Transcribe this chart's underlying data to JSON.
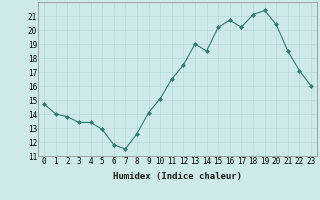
{
  "x": [
    0,
    1,
    2,
    3,
    4,
    5,
    6,
    7,
    8,
    9,
    10,
    11,
    12,
    13,
    14,
    15,
    16,
    17,
    18,
    19,
    20,
    21,
    22,
    23
  ],
  "y": [
    14.7,
    14.0,
    13.8,
    13.4,
    13.4,
    12.9,
    11.8,
    11.5,
    12.6,
    14.1,
    15.1,
    16.5,
    17.5,
    19.0,
    18.5,
    20.2,
    20.7,
    20.2,
    21.1,
    21.4,
    20.4,
    18.5,
    17.1,
    16.0
  ],
  "line_color": "#2d7d6e",
  "marker": "D",
  "marker_size": 2.0,
  "bg_color": "#ceeae8",
  "grid_color": "#b8d8d6",
  "xlabel": "Humidex (Indice chaleur)",
  "xlim": [
    -0.5,
    23.5
  ],
  "ylim": [
    11,
    22
  ],
  "yticks": [
    11,
    12,
    13,
    14,
    15,
    16,
    17,
    18,
    19,
    20,
    21
  ],
  "xticks": [
    0,
    1,
    2,
    3,
    4,
    5,
    6,
    7,
    8,
    9,
    10,
    11,
    12,
    13,
    14,
    15,
    16,
    17,
    18,
    19,
    20,
    21,
    22,
    23
  ],
  "label_fontsize": 6.5,
  "tick_fontsize": 5.5
}
